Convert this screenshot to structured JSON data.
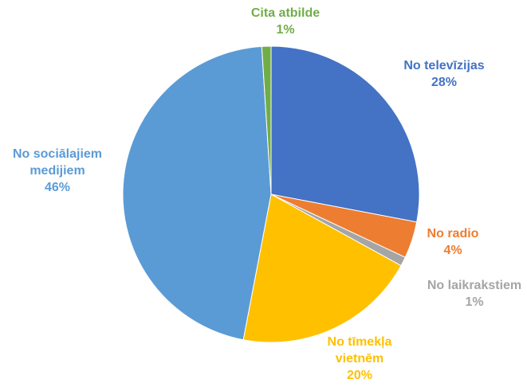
{
  "chart_data": {
    "type": "pie",
    "title": "",
    "start_angle_deg": 0,
    "direction": "clockwise",
    "slices": [
      {
        "name": "No televīzijas",
        "lines": [
          "No televīzijas"
        ],
        "value": 28,
        "percent_label": "28%",
        "color": "#4472c4"
      },
      {
        "name": "No radio",
        "lines": [
          "No radio"
        ],
        "value": 4,
        "percent_label": "4%",
        "color": "#ed7d31"
      },
      {
        "name": "No laikrakstiem",
        "lines": [
          "No laikrakstiem"
        ],
        "value": 1,
        "percent_label": "1%",
        "color": "#a5a5a5"
      },
      {
        "name": "No tīmekļa vietnēm",
        "lines": [
          "No tīmekļa",
          "vietnēm"
        ],
        "value": 20,
        "percent_label": "20%",
        "color": "#ffc000"
      },
      {
        "name": "No sociālajiem medijiem",
        "lines": [
          "No sociālajiem",
          "medijiem"
        ],
        "value": 46,
        "percent_label": "46%",
        "color": "#5b9bd5"
      },
      {
        "name": "Cita atbilde",
        "lines": [
          "Cita atbilde"
        ],
        "value": 1,
        "percent_label": "1%",
        "color": "#70ad47"
      }
    ]
  }
}
